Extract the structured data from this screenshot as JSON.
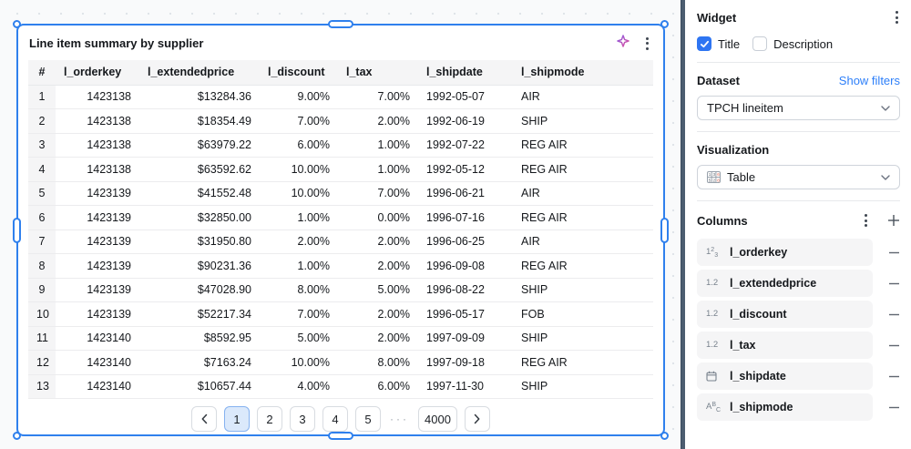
{
  "widget": {
    "title": "Line item summary by supplier",
    "icons": {
      "top_right": [
        "ai-sparkle-icon",
        "kebab-menu-icon"
      ]
    },
    "table": {
      "columns": [
        "#",
        "l_orderkey",
        "l_extendedprice",
        "l_discount",
        "l_tax",
        "l_shipdate",
        "l_shipmode"
      ],
      "rows": [
        [
          "1",
          "1423138",
          "$13284.36",
          "9.00%",
          "7.00%",
          "1992-05-07",
          "AIR"
        ],
        [
          "2",
          "1423138",
          "$18354.49",
          "7.00%",
          "2.00%",
          "1992-06-19",
          "SHIP"
        ],
        [
          "3",
          "1423138",
          "$63979.22",
          "6.00%",
          "1.00%",
          "1992-07-22",
          "REG AIR"
        ],
        [
          "4",
          "1423138",
          "$63592.62",
          "10.00%",
          "1.00%",
          "1992-05-12",
          "REG AIR"
        ],
        [
          "5",
          "1423139",
          "$41552.48",
          "10.00%",
          "7.00%",
          "1996-06-21",
          "AIR"
        ],
        [
          "6",
          "1423139",
          "$32850.00",
          "1.00%",
          "0.00%",
          "1996-07-16",
          "REG AIR"
        ],
        [
          "7",
          "1423139",
          "$31950.80",
          "2.00%",
          "2.00%",
          "1996-06-25",
          "AIR"
        ],
        [
          "8",
          "1423139",
          "$90231.36",
          "1.00%",
          "2.00%",
          "1996-09-08",
          "REG AIR"
        ],
        [
          "9",
          "1423139",
          "$47028.90",
          "8.00%",
          "5.00%",
          "1996-08-22",
          "SHIP"
        ],
        [
          "10",
          "1423139",
          "$52217.34",
          "7.00%",
          "2.00%",
          "1996-05-17",
          "FOB"
        ],
        [
          "11",
          "1423140",
          "$8592.95",
          "5.00%",
          "2.00%",
          "1997-09-09",
          "SHIP"
        ],
        [
          "12",
          "1423140",
          "$7163.24",
          "10.00%",
          "8.00%",
          "1997-09-18",
          "REG AIR"
        ],
        [
          "13",
          "1423140",
          "$10657.44",
          "4.00%",
          "6.00%",
          "1997-11-30",
          "SHIP"
        ]
      ]
    },
    "pagination": {
      "pages": [
        "1",
        "2",
        "3",
        "4",
        "5"
      ],
      "active_page": "1",
      "ellipsis": "···",
      "last_page": "4000",
      "prev_icon": "chevron-left-icon",
      "next_icon": "chevron-right-icon"
    }
  },
  "panel": {
    "widget_section": {
      "heading": "Widget",
      "title_checkbox": {
        "label": "Title",
        "checked": true
      },
      "description_checkbox": {
        "label": "Description",
        "checked": false
      }
    },
    "dataset_section": {
      "heading": "Dataset",
      "link": "Show filters",
      "selected": "TPCH lineitem"
    },
    "visualization_section": {
      "heading": "Visualization",
      "selected": "Table",
      "selected_icon": "table-viz-icon"
    },
    "columns_section": {
      "heading": "Columns",
      "header_icons": [
        "kebab-menu-icon",
        "plus-icon"
      ],
      "items": [
        {
          "type": "integer",
          "type_icon": "integer-type-icon",
          "label": "l_orderkey"
        },
        {
          "type": "decimal",
          "type_icon": "decimal-type-icon",
          "label": "l_extendedprice"
        },
        {
          "type": "decimal",
          "type_icon": "decimal-type-icon",
          "label": "l_discount"
        },
        {
          "type": "decimal",
          "type_icon": "decimal-type-icon",
          "label": "l_tax"
        },
        {
          "type": "date",
          "type_icon": "calendar-icon",
          "label": "l_shipdate"
        },
        {
          "type": "text",
          "type_icon": "text-type-icon",
          "label": "l_shipmode"
        }
      ],
      "remove_icon": "minus-icon"
    }
  },
  "colors": {
    "selection_accent": "#2f80ed",
    "checkbox_blue": "#2e75f2",
    "link_blue": "#2d7ff9",
    "active_page_bg": "#dbe9fb",
    "panel_divider_bar": "#4c5d70",
    "header_row_bg": "#f5f5f6",
    "sparkle_gradient": [
      "#7a5cf0",
      "#ef4f8f"
    ]
  }
}
